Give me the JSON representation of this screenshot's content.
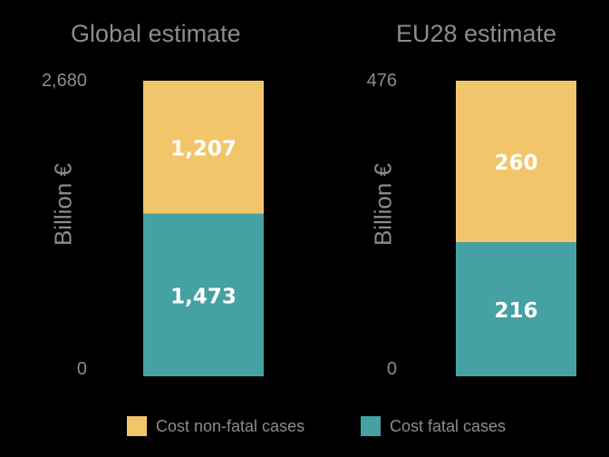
{
  "chart_data": [
    {
      "type": "bar",
      "stacked": true,
      "title": "Global estimate",
      "ylabel": "Billion €",
      "ylim": [
        0,
        2680
      ],
      "yticks": [
        "0",
        "2,680"
      ],
      "series": [
        {
          "name": "Cost fatal cases",
          "values": [
            1473
          ],
          "labels": [
            "1,473"
          ],
          "color": "#45a1a3"
        },
        {
          "name": "Cost non-fatal cases",
          "values": [
            1207
          ],
          "labels": [
            "1,207"
          ],
          "color": "#f3c56a"
        }
      ]
    },
    {
      "type": "bar",
      "stacked": true,
      "title": "EU28 estimate",
      "ylabel": "Billion €",
      "ylim": [
        0,
        476
      ],
      "yticks": [
        "0",
        "476"
      ],
      "series": [
        {
          "name": "Cost fatal cases",
          "values": [
            216
          ],
          "labels": [
            "216"
          ],
          "color": "#45a1a3"
        },
        {
          "name": "Cost non-fatal cases",
          "values": [
            260
          ],
          "labels": [
            "260"
          ],
          "color": "#f3c56a"
        }
      ]
    }
  ],
  "legend": {
    "items": [
      {
        "label": "Cost non-fatal cases",
        "color": "#f3c56a"
      },
      {
        "label": "Cost fatal cases",
        "color": "#45a1a3"
      }
    ]
  }
}
